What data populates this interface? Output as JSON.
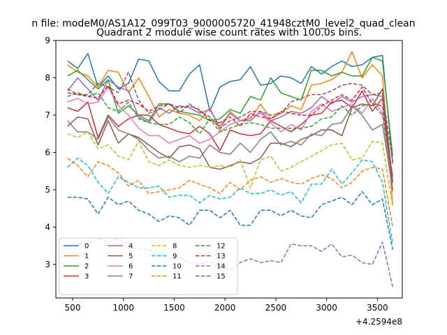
{
  "suptitle": "n file: modeM0/AS1A12_099T03_9000005720_41948cztM0_level2_quad_clean",
  "chart_data": {
    "type": "line",
    "title": "Quadrant 2 module wise count rates with 100.0s bins.",
    "xlabel": "",
    "ylabel": "",
    "x_offset_label": "+4.2594e8",
    "xlim": [
      335,
      3745
    ],
    "ylim": [
      2.1,
      9.0
    ],
    "xticks": [
      500,
      1000,
      1500,
      2000,
      2500,
      3000,
      3500
    ],
    "yticks": [
      3,
      4,
      5,
      6,
      7,
      8,
      9
    ],
    "legend_position": "lower-left",
    "legend_columns": 4,
    "grid": false,
    "x": [
      450,
      550,
      650,
      750,
      850,
      950,
      1050,
      1150,
      1250,
      1350,
      1450,
      1550,
      1650,
      1750,
      1850,
      1950,
      2050,
      2150,
      2250,
      2350,
      2450,
      2550,
      2650,
      2750,
      2850,
      2950,
      3050,
      3150,
      3250,
      3350,
      3450,
      3550,
      3650
    ],
    "series": [
      {
        "name": "0",
        "color": "#1f77b4",
        "dash": "solid",
        "values": [
          8.45,
          8.25,
          8.65,
          7.75,
          8.05,
          7.7,
          7.85,
          8.5,
          8.45,
          7.9,
          7.65,
          7.65,
          8.1,
          8.35,
          7.1,
          7.75,
          7.9,
          7.95,
          8.3,
          7.8,
          7.85,
          8.05,
          8.0,
          7.85,
          8.3,
          8.1,
          8.3,
          8.45,
          8.3,
          8.35,
          8.55,
          8.6,
          5.7
        ]
      },
      {
        "name": "1",
        "color": "#ff7f0e",
        "dash": "solid",
        "values": [
          8.35,
          8.15,
          8.05,
          7.75,
          8.2,
          8.15,
          7.6,
          8.0,
          7.5,
          6.95,
          7.15,
          7.05,
          7.0,
          6.85,
          7.2,
          6.6,
          7.1,
          6.85,
          6.9,
          7.3,
          6.9,
          7.05,
          7.25,
          7.15,
          7.8,
          7.85,
          7.95,
          8.15,
          8.7,
          8.0,
          8.35,
          8.05,
          4.6
        ]
      },
      {
        "name": "2",
        "color": "#2ca02c",
        "dash": "solid",
        "values": [
          8.05,
          8.2,
          7.95,
          7.7,
          7.95,
          7.05,
          7.25,
          7.0,
          6.85,
          7.3,
          7.3,
          7.1,
          7.05,
          7.0,
          6.85,
          6.9,
          7.15,
          7.05,
          7.5,
          7.4,
          8.0,
          7.6,
          7.5,
          7.4,
          8.2,
          8.2,
          8.05,
          8.15,
          8.05,
          8.05,
          8.55,
          8.45,
          5.9
        ]
      },
      {
        "name": "3",
        "color": "#d62728",
        "dash": "solid",
        "values": [
          7.2,
          7.1,
          7.35,
          6.4,
          7.0,
          6.7,
          6.9,
          7.0,
          7.0,
          6.75,
          6.65,
          6.55,
          6.5,
          6.7,
          6.5,
          6.05,
          6.6,
          6.5,
          6.45,
          6.5,
          6.85,
          6.7,
          6.55,
          6.75,
          7.0,
          7.05,
          7.35,
          7.4,
          7.2,
          7.65,
          7.1,
          7.45,
          5.0
        ]
      },
      {
        "name": "4",
        "color": "#9467bd",
        "dash": "solid",
        "values": [
          7.65,
          8.0,
          7.7,
          7.4,
          7.95,
          7.75,
          7.65,
          6.95,
          6.8,
          7.2,
          7.05,
          7.25,
          7.2,
          7.05,
          7.15,
          6.7,
          7.05,
          6.85,
          6.85,
          7.1,
          6.85,
          6.95,
          7.1,
          7.05,
          7.2,
          7.5,
          7.3,
          7.5,
          7.35,
          7.5,
          7.55,
          7.5,
          5.2
        ]
      },
      {
        "name": "5",
        "color": "#8c564b",
        "dash": "solid",
        "values": [
          6.7,
          6.95,
          6.9,
          6.2,
          6.85,
          6.25,
          6.5,
          6.4,
          6.2,
          6.0,
          5.85,
          6.15,
          6.2,
          6.1,
          5.6,
          5.55,
          5.65,
          5.75,
          5.7,
          5.85,
          6.25,
          6.25,
          6.15,
          6.35,
          6.45,
          6.6,
          6.6,
          6.45,
          7.2,
          7.3,
          7.25,
          7.7,
          5.2
        ]
      },
      {
        "name": "6",
        "color": "#e377c2",
        "dash": "solid",
        "values": [
          7.35,
          7.45,
          7.3,
          7.35,
          7.75,
          7.25,
          7.0,
          6.65,
          6.45,
          6.45,
          6.25,
          6.35,
          6.45,
          6.25,
          6.35,
          6.55,
          6.75,
          6.85,
          6.95,
          7.05,
          6.8,
          6.55,
          6.75,
          6.6,
          7.1,
          7.3,
          7.1,
          7.2,
          7.3,
          7.05,
          7.45,
          7.05,
          4.95
        ]
      },
      {
        "name": "7",
        "color": "#7f7f7f",
        "dash": "solid",
        "values": [
          6.85,
          6.55,
          6.55,
          6.35,
          6.95,
          6.6,
          6.5,
          6.35,
          6.05,
          5.85,
          5.9,
          5.75,
          5.9,
          5.85,
          6.2,
          6.0,
          5.95,
          6.25,
          6.0,
          6.35,
          6.55,
          6.2,
          6.3,
          6.2,
          6.5,
          6.45,
          6.75,
          6.8,
          7.25,
          7.0,
          6.6,
          6.75,
          5.0
        ]
      },
      {
        "name": "8",
        "color": "#bcbd22",
        "dash": "dashed",
        "values": [
          6.5,
          6.4,
          6.55,
          6.1,
          6.2,
          5.9,
          5.8,
          6.3,
          5.75,
          5.65,
          5.8,
          5.65,
          5.6,
          5.65,
          5.6,
          5.65,
          5.6,
          5.8,
          5.05,
          5.8,
          5.9,
          5.5,
          5.6,
          5.75,
          5.9,
          6.05,
          6.2,
          6.25,
          5.8,
          5.85,
          6.3,
          6.25,
          4.55
        ]
      },
      {
        "name": "9",
        "color": "#17becf",
        "dash": "dashed",
        "values": [
          5.6,
          5.85,
          5.65,
          5.2,
          4.9,
          5.35,
          5.2,
          5.05,
          5.05,
          5.1,
          4.8,
          4.85,
          4.85,
          4.65,
          4.85,
          4.75,
          4.8,
          5.05,
          4.9,
          4.9,
          5.0,
          4.85,
          4.95,
          4.65,
          5.15,
          5.15,
          5.55,
          5.15,
          5.45,
          5.8,
          5.75,
          5.2,
          3.55
        ]
      },
      {
        "name": "10",
        "color": "#1f77b4",
        "dash": "dashed",
        "values": [
          4.8,
          4.8,
          4.75,
          4.35,
          4.8,
          4.6,
          4.7,
          4.45,
          4.35,
          4.15,
          4.3,
          4.25,
          4.05,
          4.45,
          4.45,
          4.25,
          4.45,
          4.05,
          4.05,
          4.45,
          4.45,
          4.3,
          4.45,
          4.3,
          4.25,
          4.6,
          4.7,
          4.8,
          4.6,
          4.95,
          4.6,
          4.75,
          3.4
        ]
      },
      {
        "name": "11",
        "color": "#ff7f0e",
        "dash": "dashed",
        "values": [
          5.85,
          5.65,
          5.35,
          5.75,
          5.65,
          5.45,
          5.1,
          5.25,
          4.9,
          4.95,
          5.0,
          5.05,
          5.25,
          5.15,
          5.05,
          4.9,
          5.2,
          5.0,
          5.25,
          5.35,
          5.2,
          5.3,
          5.2,
          5.15,
          5.3,
          5.4,
          5.3,
          5.05,
          5.2,
          5.5,
          5.6,
          5.55,
          4.0
        ]
      },
      {
        "name": "12",
        "color": "#2ca02c",
        "dash": "dashed",
        "values": [
          7.5,
          7.6,
          7.5,
          7.6,
          7.2,
          7.1,
          7.35,
          6.9,
          6.8,
          6.75,
          6.75,
          6.95,
          6.8,
          6.5,
          6.9,
          6.55,
          6.65,
          6.75,
          6.8,
          6.75,
          6.65,
          6.65,
          6.65,
          6.65,
          6.7,
          6.9,
          6.95,
          7.25,
          7.0,
          7.25,
          7.3,
          7.0,
          5.35
        ]
      },
      {
        "name": "13",
        "color": "#d62728",
        "dash": "dashed",
        "values": [
          7.7,
          7.55,
          7.5,
          7.45,
          7.8,
          7.3,
          7.4,
          7.3,
          7.1,
          7.25,
          7.3,
          7.2,
          7.25,
          7.15,
          6.85,
          6.8,
          6.95,
          6.7,
          7.05,
          6.95,
          6.9,
          7.1,
          7.05,
          7.0,
          7.0,
          7.25,
          7.4,
          7.55,
          7.4,
          7.75,
          7.3,
          7.25,
          5.35
        ]
      },
      {
        "name": "14",
        "color": "#9467bd",
        "dash": "dashed",
        "values": [
          3.45,
          3.55,
          3.55,
          3.7,
          3.6,
          3.7,
          3.5,
          3.4,
          3.4,
          3.25,
          3.15,
          3.2,
          3.05,
          3.0,
          3.1,
          2.9,
          2.85,
          3.05,
          3.15,
          3.05,
          3.1,
          3.05,
          3.55,
          3.5,
          3.5,
          3.35,
          3.55,
          3.2,
          3.25,
          3.05,
          3.0,
          3.6,
          2.4
        ]
      },
      {
        "name": "15",
        "color": "#8c564b",
        "dash": "dashed",
        "values": [
          7.6,
          7.55,
          7.55,
          7.85,
          7.75,
          7.6,
          8.15,
          7.4,
          7.05,
          7.15,
          7.3,
          7.05,
          7.3,
          7.1,
          6.95,
          6.65,
          6.85,
          6.95,
          7.1,
          7.1,
          7.0,
          7.05,
          7.35,
          7.45,
          7.55,
          7.55,
          7.65,
          7.8,
          7.85,
          7.8,
          7.55,
          7.6,
          5.75
        ]
      }
    ]
  }
}
